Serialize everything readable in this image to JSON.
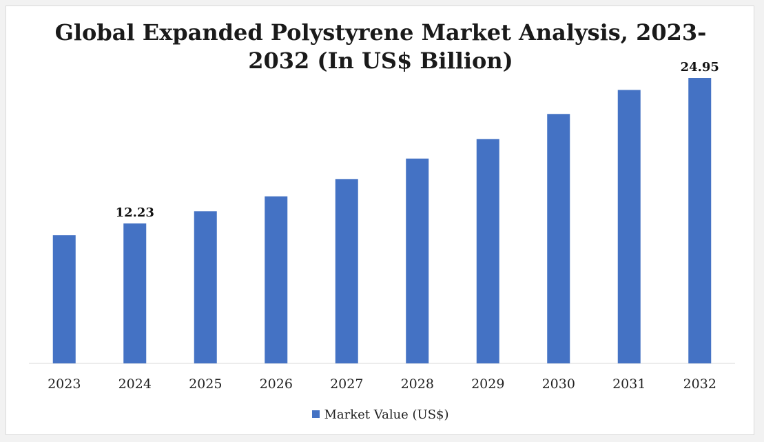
{
  "chart_data": {
    "type": "bar",
    "title_lines": [
      "Global Expanded Polystyrene Market Analysis, 2023-",
      "2032 (In US$ Billion)"
    ],
    "categories": [
      "2023",
      "2024",
      "2025",
      "2026",
      "2027",
      "2028",
      "2029",
      "2030",
      "2031",
      "2032"
    ],
    "series": [
      {
        "name": "Market Value (US$)",
        "values": [
          11.2,
          12.23,
          13.3,
          14.6,
          16.1,
          17.9,
          19.6,
          21.8,
          23.9,
          24.95
        ],
        "color": "#4472c4"
      }
    ],
    "data_labels": [
      {
        "index": 1,
        "text": "12.23"
      },
      {
        "index": 9,
        "text": "24.95"
      }
    ],
    "ylim": [
      0,
      27
    ],
    "grid": false,
    "y_axis_visible": false,
    "legend_position": "bottom",
    "baseline_color": "#d9d9d9"
  }
}
